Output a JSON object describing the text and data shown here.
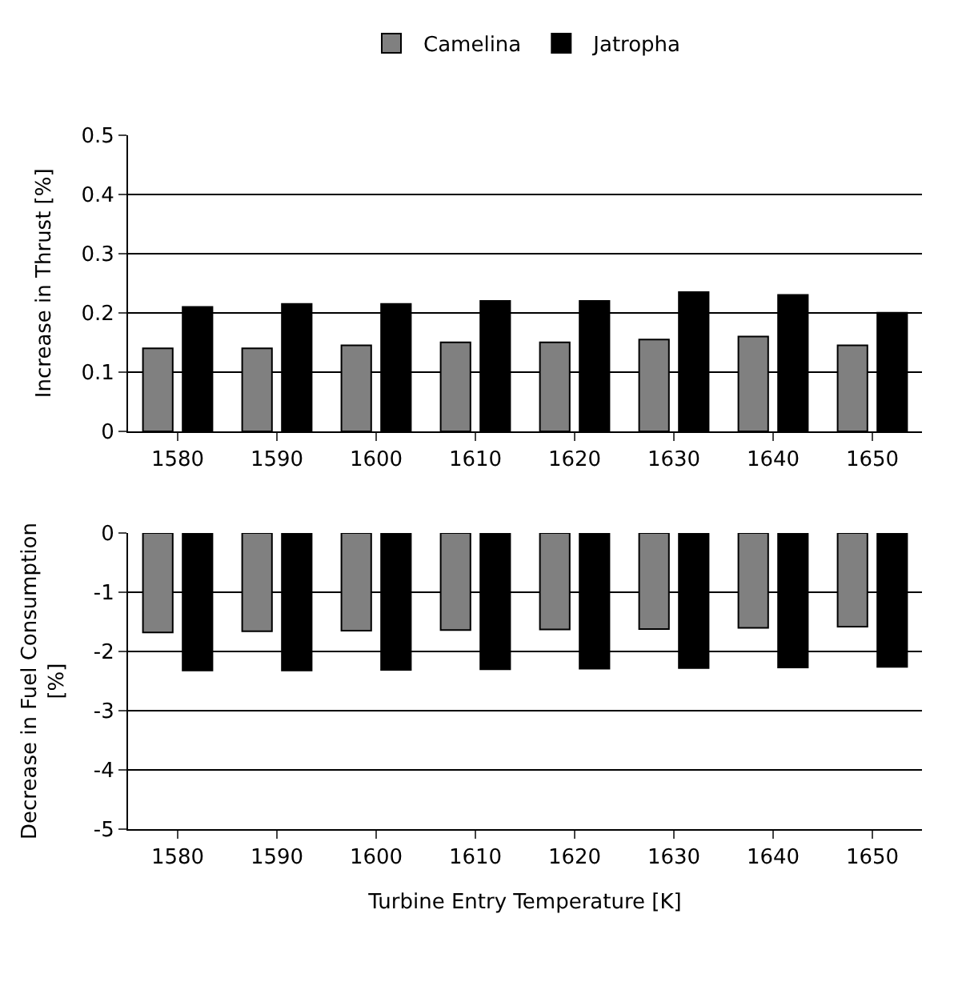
{
  "chart_data": [
    {
      "type": "bar",
      "ylabel": "Increase in Thrust [%]",
      "categories": [
        "1580",
        "1590",
        "1600",
        "1610",
        "1620",
        "1630",
        "1640",
        "1650"
      ],
      "series": [
        {
          "name": "Camelina",
          "color": "#808080",
          "values": [
            0.14,
            0.14,
            0.145,
            0.15,
            0.15,
            0.155,
            0.16,
            0.145
          ]
        },
        {
          "name": "Jatropha",
          "color": "#000000",
          "values": [
            0.21,
            0.215,
            0.215,
            0.22,
            0.22,
            0.235,
            0.23,
            0.2
          ]
        }
      ],
      "ylim": [
        0,
        0.5
      ],
      "yticks": [
        0,
        0.1,
        0.2,
        0.3,
        0.4,
        0.5
      ],
      "grid": "y",
      "legend": "top"
    },
    {
      "type": "bar",
      "ylabel": "Decrease in Fuel Consumption [%]",
      "xlabel": "Turbine Entry Temperature [K]",
      "categories": [
        "1580",
        "1590",
        "1600",
        "1610",
        "1620",
        "1630",
        "1640",
        "1650"
      ],
      "series": [
        {
          "color": "#808080",
          "values": [
            -1.68,
            -1.66,
            -1.65,
            -1.64,
            -1.63,
            -1.62,
            -1.6,
            -1.58
          ]
        },
        {
          "color": "#000000",
          "values": [
            -2.32,
            -2.32,
            -2.31,
            -2.3,
            -2.29,
            -2.28,
            -2.27,
            -2.26
          ]
        }
      ],
      "ylim": [
        -5,
        0
      ],
      "yticks": [
        -5,
        -4,
        -3,
        -2,
        -1,
        0
      ],
      "grid": "y"
    }
  ]
}
